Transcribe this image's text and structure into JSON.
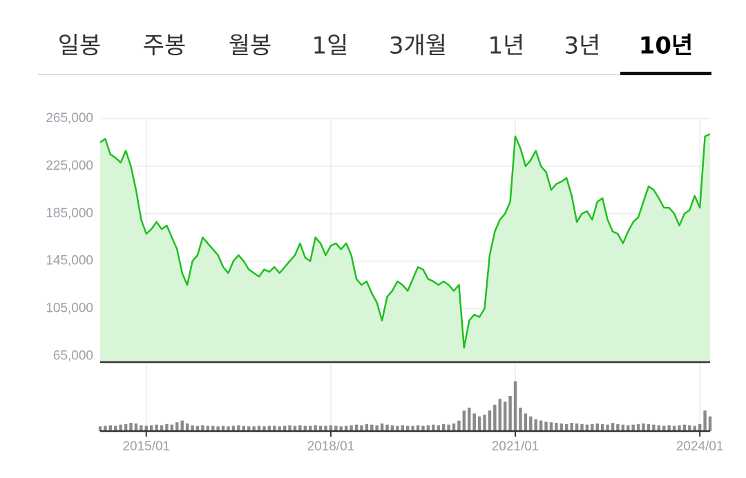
{
  "tabs": {
    "labels": [
      "일봉",
      "주봉",
      "월봉",
      "1일",
      "3개월",
      "1년",
      "3년",
      "10년"
    ],
    "active": 7
  },
  "chart_data": {
    "type": "line",
    "x": [
      "2014/04",
      "2014/05",
      "2014/06",
      "2014/07",
      "2014/08",
      "2014/09",
      "2014/10",
      "2014/11",
      "2014/12",
      "2015/01",
      "2015/02",
      "2015/03",
      "2015/04",
      "2015/05",
      "2015/06",
      "2015/07",
      "2015/08",
      "2015/09",
      "2015/10",
      "2015/11",
      "2015/12",
      "2016/01",
      "2016/02",
      "2016/03",
      "2016/04",
      "2016/05",
      "2016/06",
      "2016/07",
      "2016/08",
      "2016/09",
      "2016/10",
      "2016/11",
      "2016/12",
      "2017/01",
      "2017/02",
      "2017/03",
      "2017/04",
      "2017/05",
      "2017/06",
      "2017/07",
      "2017/08",
      "2017/09",
      "2017/10",
      "2017/11",
      "2017/12",
      "2018/01",
      "2018/02",
      "2018/03",
      "2018/04",
      "2018/05",
      "2018/06",
      "2018/07",
      "2018/08",
      "2018/09",
      "2018/10",
      "2018/11",
      "2018/12",
      "2019/01",
      "2019/02",
      "2019/03",
      "2019/04",
      "2019/05",
      "2019/06",
      "2019/07",
      "2019/08",
      "2019/09",
      "2019/10",
      "2019/11",
      "2019/12",
      "2020/01",
      "2020/02",
      "2020/03",
      "2020/04",
      "2020/05",
      "2020/06",
      "2020/07",
      "2020/08",
      "2020/09",
      "2020/10",
      "2020/11",
      "2020/12",
      "2021/01",
      "2021/02",
      "2021/03",
      "2021/04",
      "2021/05",
      "2021/06",
      "2021/07",
      "2021/08",
      "2021/09",
      "2021/10",
      "2021/11",
      "2021/12",
      "2022/01",
      "2022/02",
      "2022/03",
      "2022/04",
      "2022/05",
      "2022/06",
      "2022/07",
      "2022/08",
      "2022/09",
      "2022/10",
      "2022/11",
      "2022/12",
      "2023/01",
      "2023/02",
      "2023/03",
      "2023/04",
      "2023/05",
      "2023/06",
      "2023/07",
      "2023/08",
      "2023/09",
      "2023/10",
      "2023/11",
      "2023/12",
      "2024/01",
      "2024/02",
      "2024/03"
    ],
    "series": [
      {
        "color": "#1fbf1f",
        "values": [
          245000,
          248000,
          235000,
          232000,
          228000,
          238000,
          225000,
          205000,
          180000,
          168000,
          172000,
          178000,
          172000,
          175000,
          165000,
          155000,
          135000,
          125000,
          145000,
          150000,
          165000,
          160000,
          155000,
          150000,
          140000,
          135000,
          145000,
          150000,
          145000,
          138000,
          135000,
          132000,
          138000,
          136000,
          140000,
          135000,
          140000,
          145000,
          150000,
          160000,
          148000,
          145000,
          165000,
          160000,
          150000,
          158000,
          160000,
          155000,
          160000,
          150000,
          130000,
          125000,
          128000,
          118000,
          110000,
          95000,
          115000,
          120000,
          128000,
          125000,
          120000,
          130000,
          140000,
          138000,
          130000,
          128000,
          125000,
          128000,
          125000,
          120000,
          125000,
          72000,
          95000,
          100000,
          98000,
          105000,
          150000,
          170000,
          180000,
          185000,
          195000,
          250000,
          240000,
          225000,
          230000,
          238000,
          225000,
          220000,
          205000,
          210000,
          212000,
          215000,
          200000,
          178000,
          185000,
          187000,
          180000,
          195000,
          198000,
          180000,
          170000,
          168000,
          160000,
          170000,
          178000,
          182000,
          195000,
          208000,
          205000,
          198000,
          190000,
          190000,
          185000,
          175000,
          185000,
          188000,
          200000,
          190000,
          250000,
          252000
        ]
      }
    ],
    "volume": {
      "values": [
        8,
        9,
        10,
        9,
        11,
        12,
        14,
        13,
        10,
        9,
        10,
        11,
        10,
        12,
        11,
        15,
        18,
        13,
        10,
        9,
        10,
        9,
        9,
        8,
        9,
        8,
        9,
        10,
        9,
        8,
        8,
        9,
        8,
        9,
        9,
        8,
        9,
        10,
        9,
        10,
        9,
        9,
        10,
        9,
        9,
        10,
        9,
        8,
        9,
        10,
        11,
        10,
        12,
        11,
        10,
        13,
        11,
        10,
        9,
        10,
        9,
        9,
        10,
        9,
        10,
        11,
        10,
        12,
        11,
        13,
        18,
        35,
        40,
        30,
        25,
        28,
        35,
        45,
        55,
        50,
        60,
        85,
        40,
        30,
        25,
        20,
        18,
        16,
        15,
        14,
        13,
        12,
        14,
        13,
        12,
        11,
        12,
        13,
        12,
        11,
        14,
        12,
        11,
        10,
        11,
        12,
        13,
        12,
        11,
        10,
        9,
        10,
        9,
        10,
        11,
        10,
        9,
        12,
        35,
        25
      ],
      "vlim": [
        0,
        100
      ]
    },
    "ylim": [
      60000,
      265000
    ],
    "yticks": [
      {
        "value": 65000,
        "label": "65,000"
      },
      {
        "value": 105000,
        "label": "105,000"
      },
      {
        "value": 145000,
        "label": "145,000"
      },
      {
        "value": 185000,
        "label": "185,000"
      },
      {
        "value": 225000,
        "label": "225,000"
      },
      {
        "value": 265000,
        "label": "265,000"
      }
    ],
    "xticks": [
      "2015/01",
      "2018/01",
      "2021/01",
      "2024/01"
    ],
    "grid": true
  }
}
